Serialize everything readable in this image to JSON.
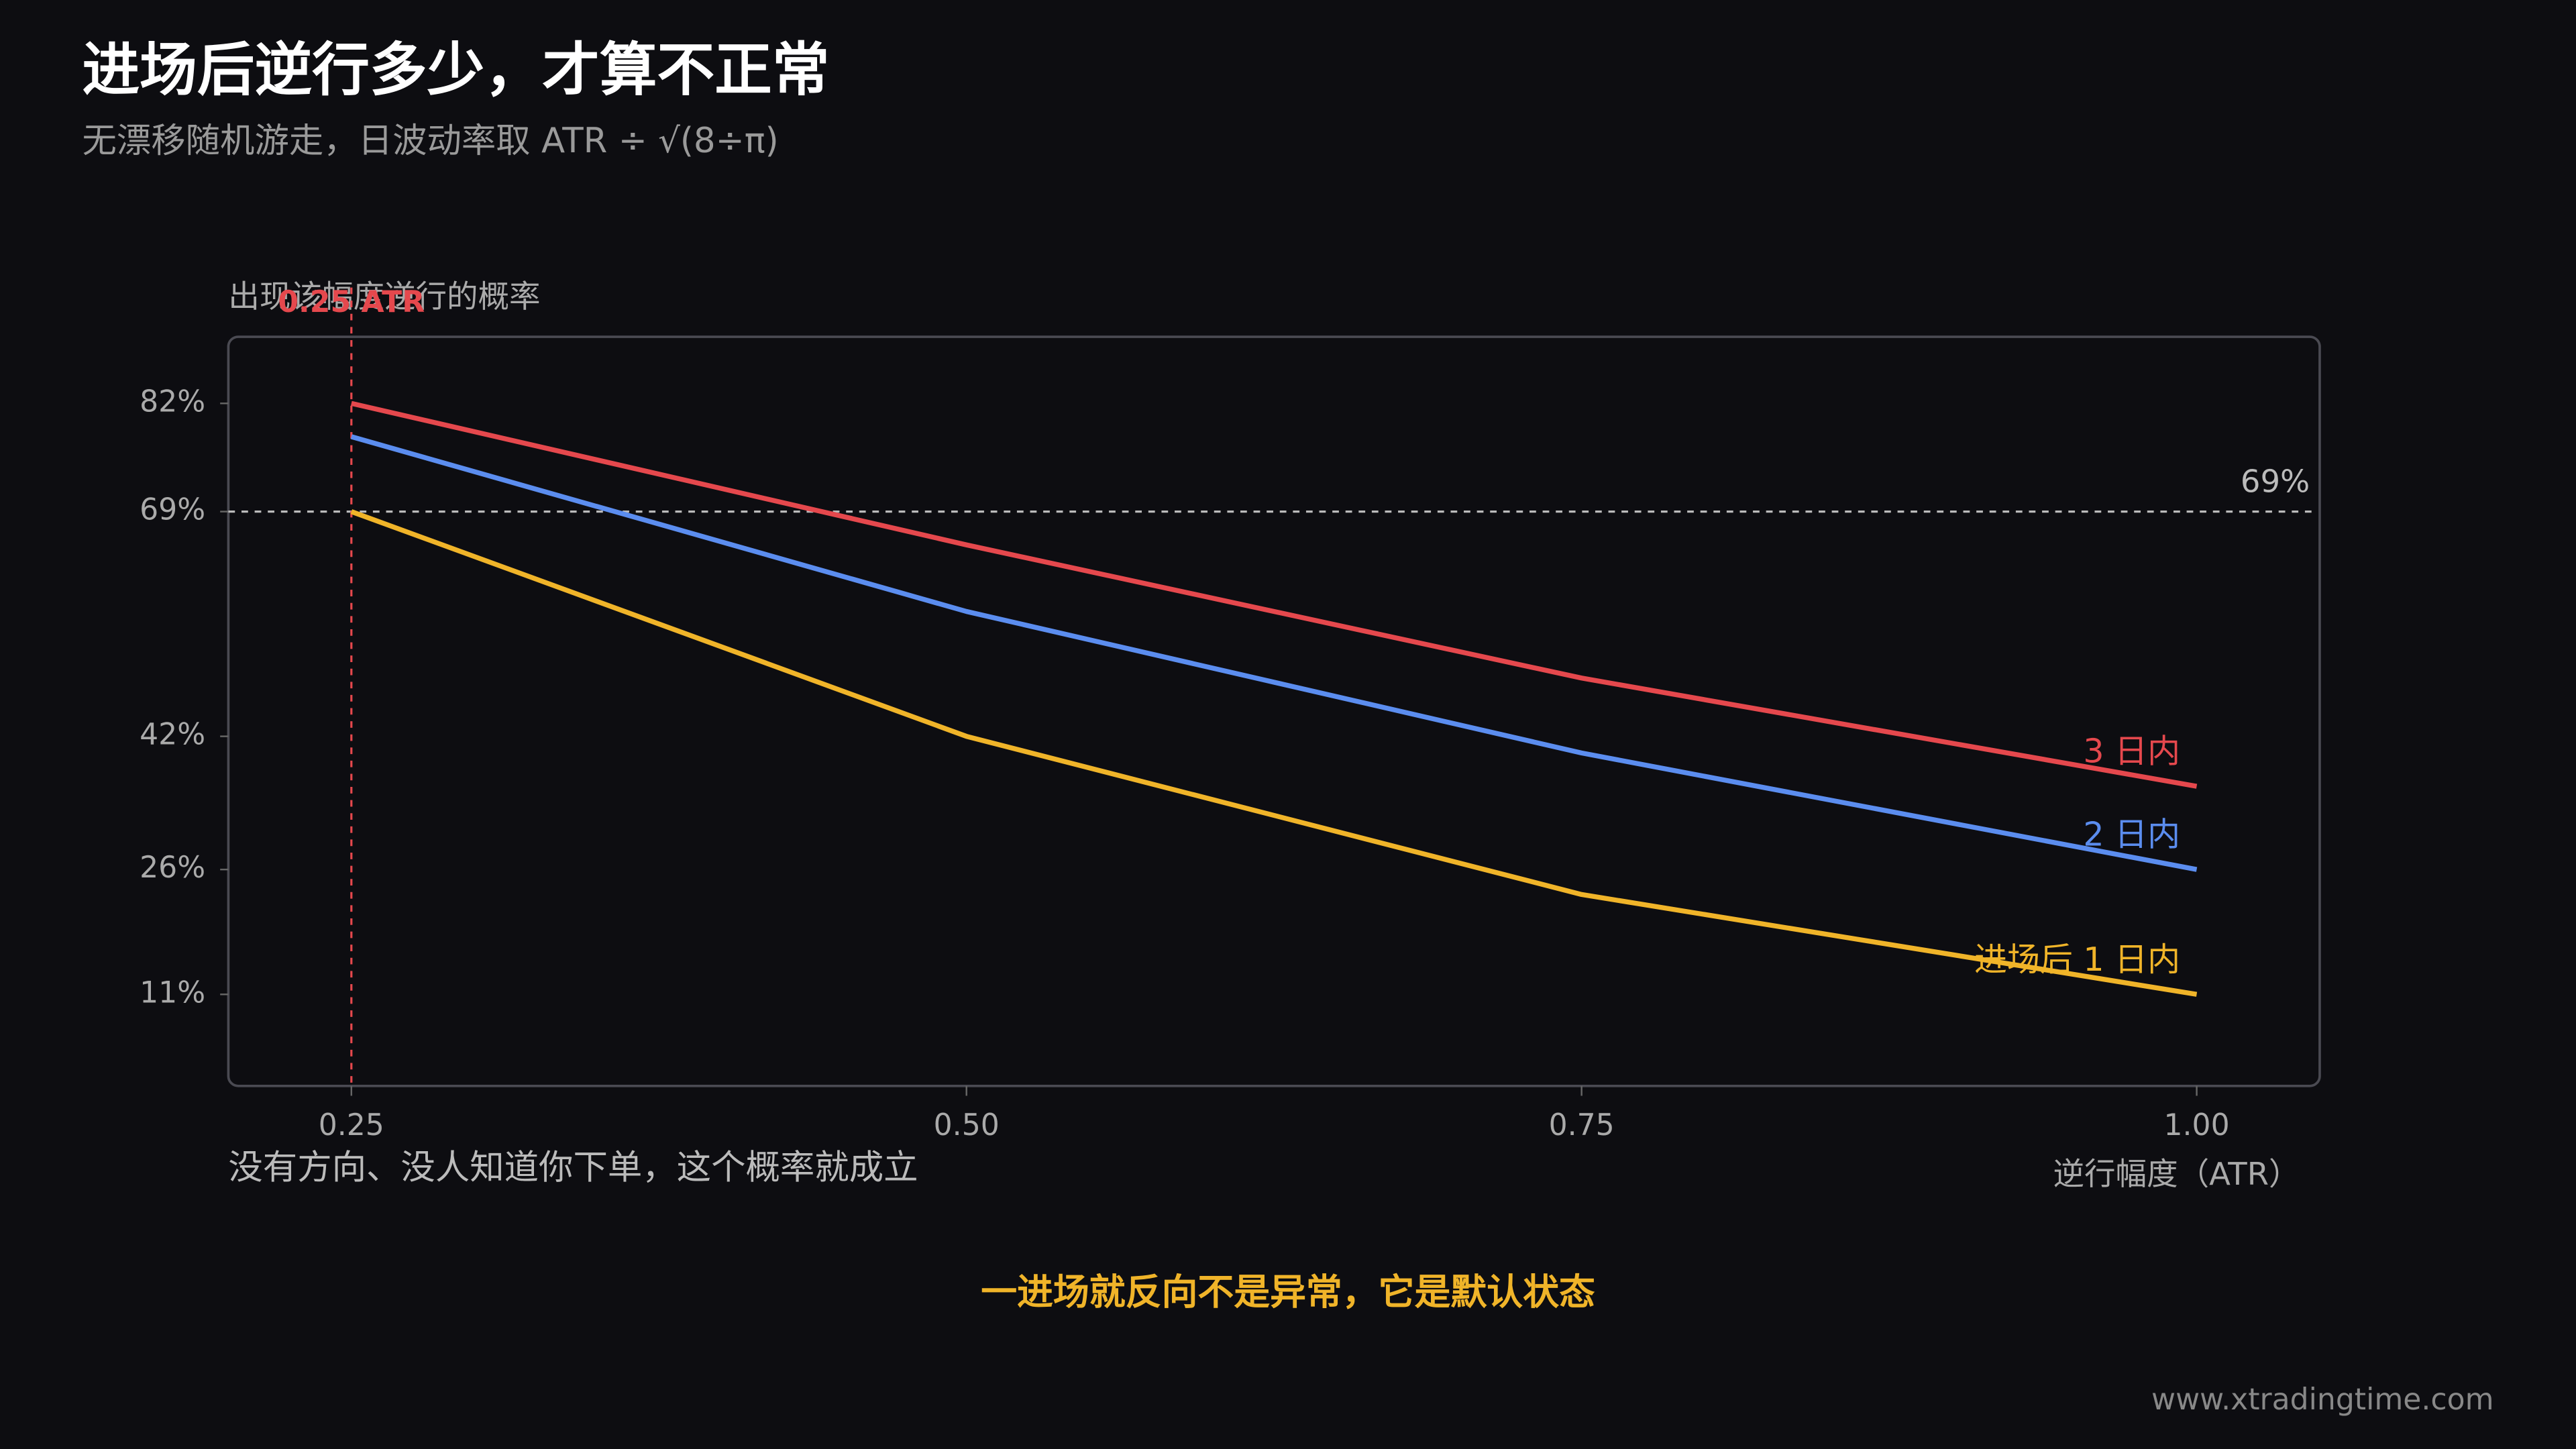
{
  "chart_data": {
    "type": "line",
    "title": "进场后逆行多少，才算不正常",
    "subtitle": "无漂移随机游走，日波动率取 ATR ÷ √(8÷π)",
    "y_label": "出现该幅度逆行的概率",
    "x_label": "逆行幅度（ATR）",
    "note": "没有方向、没人知道你下单，这个概率就成立",
    "highlight": "一进场就反向不是异常，它是默认状态",
    "watermark": "www.xtradingtime.com",
    "x": [
      0.25,
      0.5,
      0.75,
      1.0
    ],
    "series": [
      {
        "name": "3 日内",
        "color": "#e5484d",
        "values": [
          82,
          65,
          49,
          36
        ]
      },
      {
        "name": "2 日内",
        "color": "#5b8def",
        "values": [
          78,
          57,
          40,
          26
        ]
      },
      {
        "name": "进场后 1 日内",
        "color": "#f0b429",
        "values": [
          69,
          42,
          23,
          11
        ]
      }
    ],
    "xlim": [
      0.2,
      1.05
    ],
    "ylim": [
      0,
      90
    ],
    "xticks": [
      0.25,
      {
        "value": 0.5,
        "label": "0.50"
      },
      {
        "value": 0.75,
        "label": "0.75"
      },
      {
        "value": 1.0,
        "label": "1.00"
      }
    ],
    "yticks": [
      {
        "value": 11,
        "label": "11%"
      },
      {
        "value": 26,
        "label": "26%"
      },
      {
        "value": 42,
        "label": "42%"
      },
      {
        "value": 69,
        "label": "69%"
      },
      {
        "value": 82,
        "label": "82%"
      }
    ],
    "hlines": [
      {
        "value": 69,
        "label": "69%",
        "color": "#bbbbbb"
      }
    ],
    "vlines": [
      {
        "value": 0.25,
        "label": "0.25 ATR",
        "color": "#e5484d"
      }
    ],
    "grid": false
  }
}
